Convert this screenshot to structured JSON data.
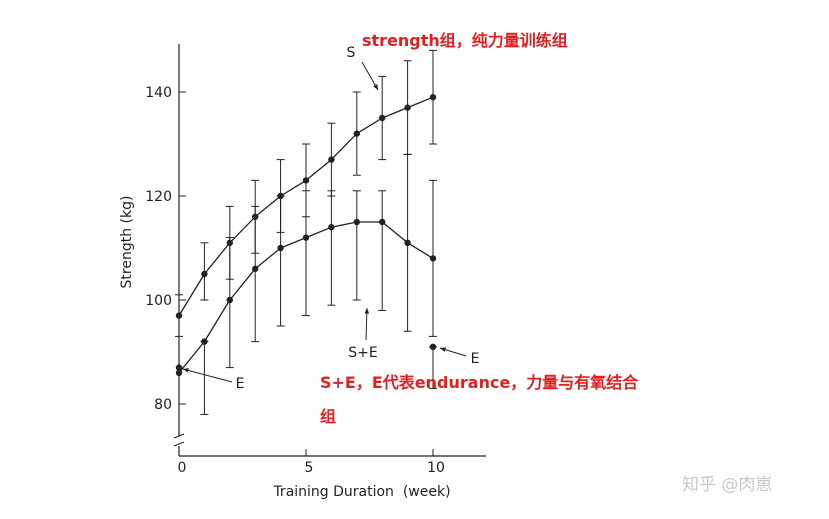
{
  "chart_data": {
    "type": "line",
    "xlabel": "Training Duration  (week)",
    "ylabel": "Strength  (kg)",
    "xlim": [
      0,
      12
    ],
    "ylim": [
      75,
      150
    ],
    "x_ticks": [
      0,
      5,
      10
    ],
    "x_tick_labels": [
      "0",
      "5",
      "10"
    ],
    "y_ticks": [
      80,
      100,
      120,
      140
    ],
    "y_tick_labels": [
      "80",
      "100",
      "120",
      "140"
    ],
    "y_axis_break": true,
    "grid": false,
    "series": [
      {
        "name": "S",
        "x": [
          0,
          1,
          2,
          3,
          4,
          5,
          6,
          7,
          8,
          9,
          10
        ],
        "y": [
          97,
          105,
          111,
          116,
          120,
          123,
          127,
          132,
          135,
          137,
          139
        ],
        "err_low": [
          93,
          100,
          104,
          109,
          113,
          116,
          120,
          124,
          127,
          128,
          130
        ],
        "err_high": [
          101,
          111,
          118,
          123,
          127,
          130,
          134,
          140,
          143,
          146,
          148
        ]
      },
      {
        "name": "S+E",
        "x": [
          0,
          1,
          2,
          3,
          4,
          5,
          6,
          7,
          8,
          9,
          10
        ],
        "y": [
          86,
          92,
          100,
          106,
          110,
          112,
          114,
          115,
          115,
          111,
          108
        ],
        "err_low": [
          86,
          78,
          87,
          92,
          95,
          97,
          99,
          100,
          98,
          94,
          93
        ],
        "err_high": [
          86,
          92,
          112,
          118,
          120,
          121,
          121,
          121,
          121,
          128,
          123
        ]
      },
      {
        "name": "E",
        "x": [
          0,
          10
        ],
        "y": [
          87,
          91
        ],
        "err_low": [
          87,
          83
        ],
        "err_high": [
          87,
          91
        ]
      }
    ],
    "series_labels": {
      "S": "S",
      "SE": "S+E",
      "E_left": "E",
      "E_right": "E"
    },
    "colors": {
      "line": "#222222",
      "annotation": "#e02020",
      "watermark": "#c8c8c8"
    }
  },
  "annotations": {
    "strength_note": "strength组，纯力量训练组",
    "se_note_line1": "S+E，E代表endurance，力量与有氧结合",
    "se_note_line2": "组"
  },
  "watermark": "知乎 @肉崽"
}
